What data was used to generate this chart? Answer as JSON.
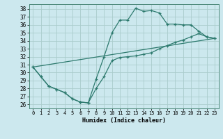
{
  "xlabel": "Humidex (Indice chaleur)",
  "xlim": [
    -0.5,
    23.5
  ],
  "ylim": [
    25.5,
    38.6
  ],
  "xticks": [
    0,
    1,
    2,
    3,
    4,
    5,
    6,
    7,
    8,
    9,
    10,
    11,
    12,
    13,
    14,
    15,
    16,
    17,
    18,
    19,
    20,
    21,
    22,
    23
  ],
  "yticks": [
    26,
    27,
    28,
    29,
    30,
    31,
    32,
    33,
    34,
    35,
    36,
    37,
    38
  ],
  "bg_color": "#cce8ee",
  "grid_color": "#aacccc",
  "line_color": "#2d7a6e",
  "line1_x": [
    0,
    1,
    2,
    3,
    4,
    5,
    6,
    7,
    8,
    9,
    10,
    11,
    12,
    13,
    14,
    15,
    16,
    17,
    18,
    19,
    20,
    21,
    22,
    23
  ],
  "line1_y": [
    30.7,
    29.5,
    28.3,
    27.9,
    27.5,
    26.7,
    26.3,
    26.2,
    29.2,
    32.0,
    35.0,
    36.6,
    36.6,
    38.1,
    37.7,
    37.8,
    37.5,
    36.1,
    36.1,
    36.0,
    36.0,
    35.2,
    34.5,
    34.3
  ],
  "line2_x": [
    0,
    1,
    2,
    3,
    4,
    5,
    6,
    7,
    8,
    9,
    10,
    11,
    12,
    13,
    14,
    15,
    16,
    17,
    18,
    19,
    20,
    21,
    22,
    23
  ],
  "line2_y": [
    30.7,
    29.5,
    28.3,
    27.9,
    27.5,
    26.7,
    26.3,
    26.2,
    28.0,
    29.5,
    31.5,
    31.9,
    32.0,
    32.1,
    32.3,
    32.5,
    33.0,
    33.4,
    33.8,
    34.1,
    34.5,
    34.9,
    34.5,
    34.3
  ],
  "line3_x": [
    0,
    23
  ],
  "line3_y": [
    30.7,
    34.3
  ]
}
